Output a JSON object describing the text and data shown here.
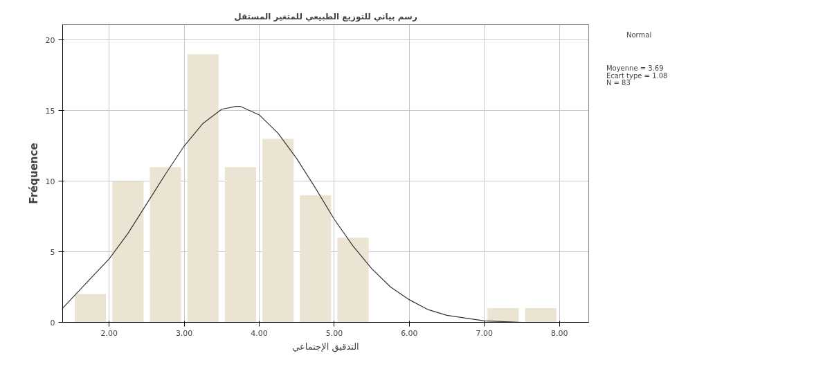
{
  "chart_data": {
    "type": "histogram",
    "title": "رسم بياني للتوزيع الطبيعي للمتغير المستقل",
    "xlabel": "التدقيق الإجتماعي",
    "ylabel": "Fréquence",
    "bins": [
      1.5,
      2.0,
      2.5,
      3.0,
      3.5,
      4.0,
      4.5,
      5.0,
      5.5,
      6.0,
      6.5,
      7.0,
      7.5,
      8.0
    ],
    "values": [
      2,
      10,
      11,
      19,
      11,
      13,
      9,
      6,
      0,
      0,
      0,
      1,
      1
    ],
    "color": "#ebe4d2",
    "series": [
      {
        "type": "line",
        "name": "Normal",
        "color": "#333333",
        "x": [
          1.38,
          1.75,
          2.0,
          2.25,
          2.5,
          2.75,
          3.0,
          3.25,
          3.5,
          3.69,
          3.75,
          4.0,
          4.25,
          4.5,
          4.75,
          5.0,
          5.25,
          5.5,
          5.75,
          6.0,
          6.25,
          6.5,
          6.75,
          7.0,
          7.5,
          8.0,
          8.38
        ],
        "values": [
          1.0,
          3.1,
          4.5,
          6.3,
          8.4,
          10.5,
          12.5,
          14.1,
          15.1,
          15.3,
          15.3,
          14.7,
          13.4,
          11.6,
          9.5,
          7.3,
          5.4,
          3.8,
          2.5,
          1.6,
          0.9,
          0.5,
          0.3,
          0.1,
          0.0,
          0.0,
          0.0
        ]
      }
    ],
    "xlim": [
      1.38,
      8.39
    ],
    "ylim": [
      0,
      21.1
    ],
    "xticks": [
      {
        "value": 2,
        "label": "2.00"
      },
      {
        "value": 3,
        "label": "3.00"
      },
      {
        "value": 4,
        "label": "4.00"
      },
      {
        "value": 5,
        "label": "5.00"
      },
      {
        "value": 6,
        "label": "6.00"
      },
      {
        "value": 7,
        "label": "7.00"
      },
      {
        "value": 8,
        "label": "8.00"
      }
    ],
    "yticks": [
      0,
      5,
      10,
      15,
      20
    ],
    "grid": true,
    "legend": "top right",
    "annotations": [
      "Moyenne = 3.69",
      "Ecart type = 1.08",
      "N = 83"
    ]
  }
}
